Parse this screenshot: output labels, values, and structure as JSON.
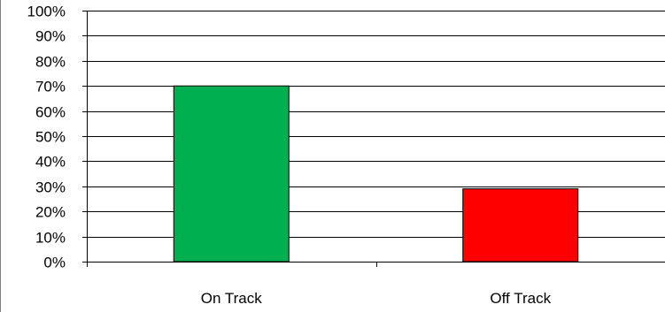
{
  "chart_data": {
    "type": "bar",
    "categories": [
      "On Track",
      "Off Track"
    ],
    "values": [
      70,
      29
    ],
    "bar_colors": [
      "#00b050",
      "#ff0000"
    ],
    "ylim": [
      0,
      100
    ],
    "yticks": [
      "0%",
      "10%",
      "20%",
      "30%",
      "40%",
      "50%",
      "60%",
      "70%",
      "80%",
      "90%",
      "100%"
    ],
    "title": "",
    "xlabel": "",
    "ylabel": "",
    "grid": true,
    "legend": "none"
  }
}
